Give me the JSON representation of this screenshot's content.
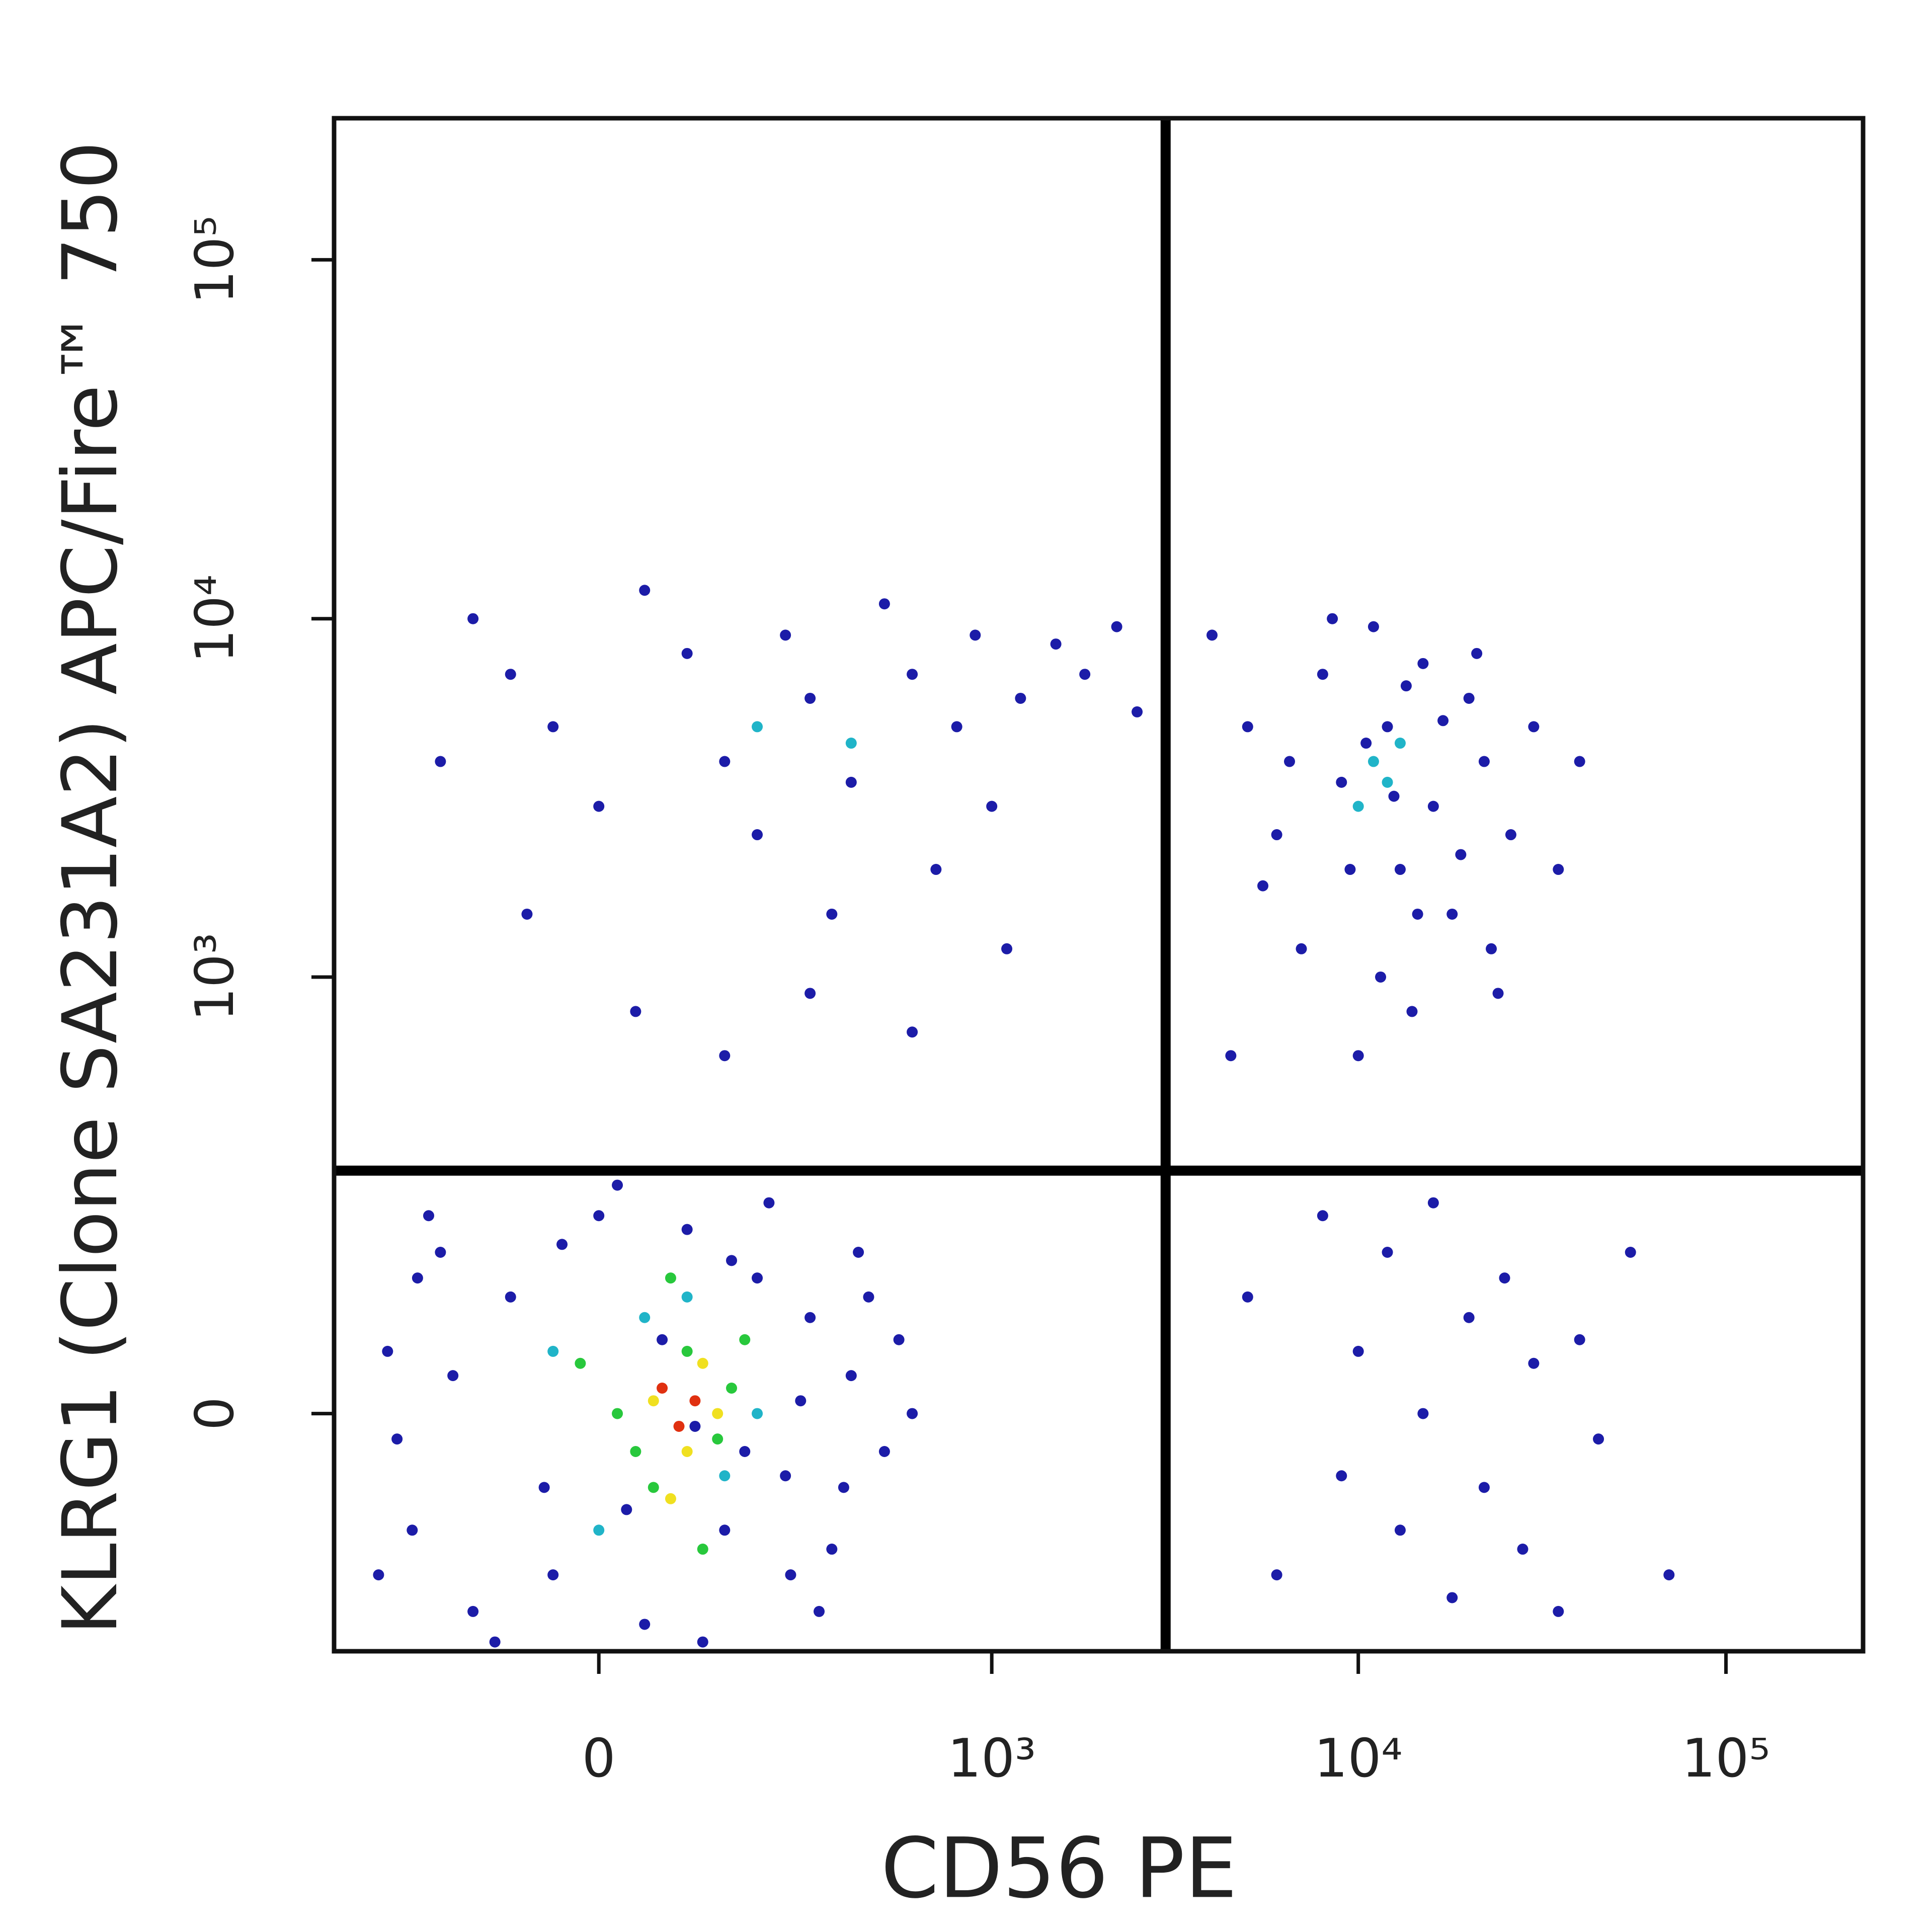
{
  "chart_data": {
    "type": "scatter",
    "x_label": "CD56 PE",
    "y_label": "KLRG1 (Clone SA231A2) APC/Fire™ 750",
    "scale": "biexponential",
    "xlim": [
      -435,
      236000
    ],
    "ylim": [
      -267,
      248000
    ],
    "xticks": [
      0,
      {
        "value": 1000,
        "label": "10³"
      },
      {
        "value": 10000,
        "label": "10⁴"
      },
      {
        "value": 100000,
        "label": "10⁵"
      }
    ],
    "yticks": [
      0,
      {
        "value": 1000,
        "label": "10³"
      },
      {
        "value": 10000,
        "label": "10⁴"
      },
      {
        "value": 100000,
        "label": "10⁵"
      }
    ],
    "gates": {
      "x": 2990,
      "y": 277,
      "color": "#000000"
    },
    "series": [
      {
        "color": "#1c1ca8",
        "x": [
          -300,
          -250,
          -200,
          -150,
          -100,
          -50,
          0,
          50,
          100,
          150,
          200,
          250,
          300,
          350,
          400,
          -280,
          -220,
          -120,
          20,
          120,
          220,
          320,
          420,
          500,
          550,
          -180,
          -60,
          70,
          180,
          280,
          380,
          450,
          -240,
          -40,
          160,
          260,
          600,
          -320,
          30,
          110,
          -150,
          -100,
          -50,
          0,
          50,
          100,
          150,
          200,
          250,
          300,
          350,
          400,
          500,
          600,
          700,
          800,
          900,
          1000,
          1200,
          1500,
          1800,
          2200,
          2500,
          -200,
          -80,
          40,
          150,
          300,
          600,
          1100,
          4000,
          5000,
          6000,
          7000,
          8000,
          9000,
          10000,
          11000,
          12000,
          13000,
          14000,
          15000,
          16000,
          18000,
          20000,
          22000,
          24000,
          26000,
          30000,
          4500,
          5500,
          6500,
          8500,
          9500,
          10500,
          11500,
          12500,
          13500,
          14500,
          17000,
          19000,
          21000,
          23000,
          40000,
          35000,
          5000,
          6000,
          8000,
          9000,
          10000,
          12000,
          13000,
          15000,
          16000,
          18000,
          20000,
          22000,
          25000,
          28000,
          30000,
          35000,
          40000,
          45000,
          55000,
          70000
        ],
        "y": [
          50,
          -100,
          150,
          -200,
          100,
          -150,
          200,
          -220,
          180,
          -100,
          120,
          -50,
          80,
          -120,
          30,
          -20,
          200,
          -250,
          250,
          -250,
          220,
          -200,
          150,
          -30,
          60,
          30,
          -60,
          60,
          -30,
          10,
          -60,
          100,
          120,
          160,
          140,
          -150,
          0,
          -150,
          -80,
          -10,
          10000,
          7000,
          5000,
          3000,
          12000,
          8000,
          4000,
          2500,
          9000,
          6000,
          1500,
          3500,
          11000,
          7000,
          2000,
          5000,
          9000,
          3000,
          6000,
          8500,
          7000,
          9500,
          5500,
          4000,
          1500,
          800,
          600,
          900,
          700,
          1200,
          9000,
          5000,
          2500,
          1200,
          7000,
          3500,
          600,
          9500,
          5000,
          2000,
          800,
          7500,
          3000,
          1500,
          6000,
          4000,
          900,
          2500,
          5000,
          600,
          1800,
          4000,
          10000,
          2000,
          4500,
          1000,
          3200,
          6500,
          1500,
          5200,
          2200,
          8000,
          1200,
          4000,
          2000,
          100,
          -150,
          200,
          -50,
          50,
          150,
          -100,
          0,
          220,
          -180,
          80,
          -60,
          120,
          -120,
          40,
          -200,
          60,
          -20,
          150,
          -150
        ]
      },
      {
        "color": "#20b4c8",
        "x": [
          11000,
          12000,
          13000,
          10000,
          200,
          400,
          0,
          50,
          150,
          100,
          -50,
          200
        ],
        "y": [
          4000,
          3500,
          4500,
          3000,
          5000,
          4500,
          -100,
          80,
          -50,
          100,
          50,
          0
        ]
      },
      {
        "color": "#28c83c",
        "x": [
          20,
          60,
          100,
          140,
          80,
          -20,
          180,
          120,
          40,
          160
        ],
        "y": [
          0,
          -60,
          50,
          -20,
          120,
          40,
          60,
          -120,
          -30,
          20
        ]
      },
      {
        "color": "#f0e020",
        "x": [
          60,
          100,
          120,
          80,
          140
        ],
        "y": [
          10,
          -30,
          40,
          -70,
          0
        ]
      },
      {
        "color": "#e03010",
        "x": [
          70,
          90,
          110
        ],
        "y": [
          20,
          -10,
          10
        ]
      }
    ]
  }
}
